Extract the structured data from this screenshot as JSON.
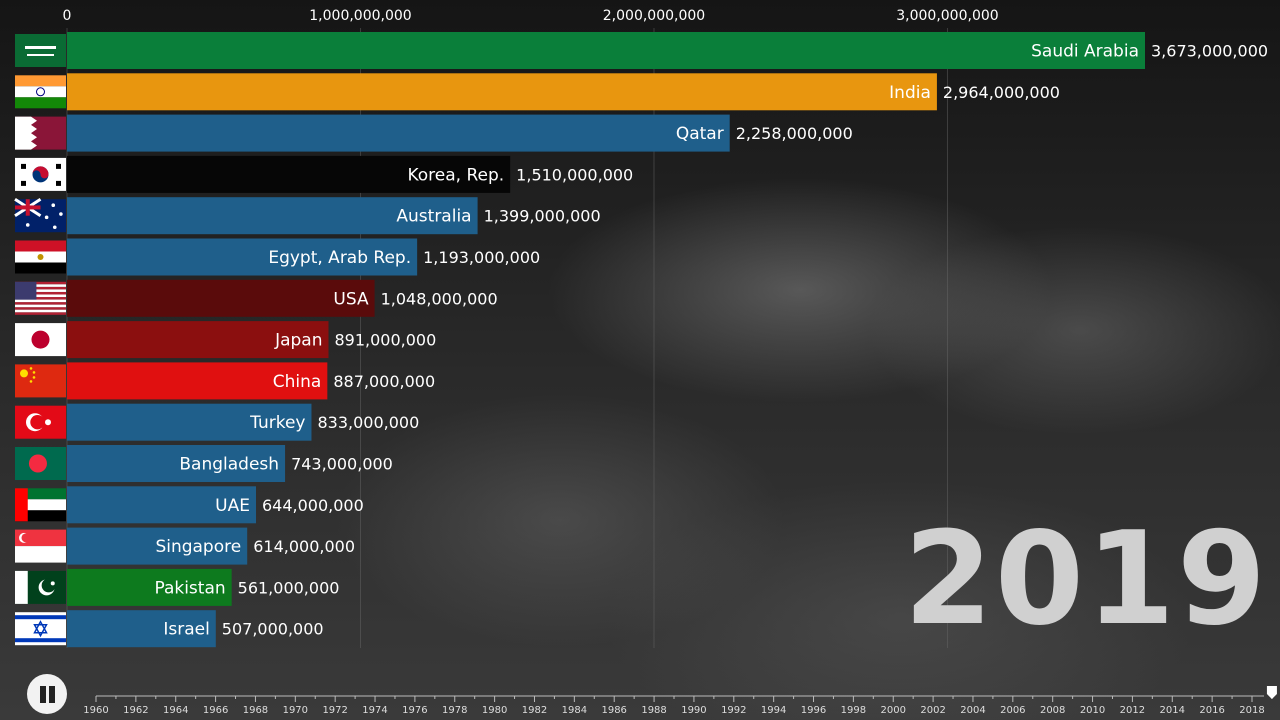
{
  "chart_data": {
    "type": "bar",
    "orientation": "horizontal",
    "title": "",
    "xlabel": "",
    "ylabel": "",
    "xlim": [
      0,
      3673000000
    ],
    "grid": true,
    "x_ticks": [
      0,
      1000000000,
      2000000000,
      3000000000
    ],
    "x_tick_labels": [
      "0",
      "1,000,000,000",
      "2,000,000,000",
      "3,000,000,000"
    ],
    "categories": [
      "Saudi Arabia",
      "India",
      "Qatar",
      "Korea, Rep.",
      "Australia",
      "Egypt, Arab Rep.",
      "USA",
      "Japan",
      "China",
      "Turkey",
      "Bangladesh",
      "UAE",
      "Singapore",
      "Pakistan",
      "Israel"
    ],
    "values": [
      3673000000,
      2964000000,
      2258000000,
      1510000000,
      1399000000,
      1193000000,
      1048000000,
      891000000,
      887000000,
      833000000,
      743000000,
      644000000,
      614000000,
      561000000,
      507000000
    ],
    "value_labels": [
      "3,673,000,000",
      "2,964,000,000",
      "2,258,000,000",
      "1,510,000,000",
      "1,399,000,000",
      "1,193,000,000",
      "1,048,000,000",
      "891,000,000",
      "887,000,000",
      "833,000,000",
      "743,000,000",
      "644,000,000",
      "614,000,000",
      "561,000,000",
      "507,000,000"
    ],
    "colors": [
      "#0a7f3a",
      "#e8960f",
      "#1f5f8b",
      "#060606",
      "#1f5f8b",
      "#1f5f8b",
      "#5a0b0b",
      "#8b0f0f",
      "#e01010",
      "#1f5f8b",
      "#1f5f8b",
      "#1f5f8b",
      "#1f5f8b",
      "#0d7a1e",
      "#1f5f8b"
    ],
    "flags": [
      "saudi-arabia-flag",
      "india-flag",
      "qatar-flag",
      "korea-flag",
      "australia-flag",
      "egypt-flag",
      "usa-flag",
      "japan-flag",
      "china-flag",
      "turkey-flag",
      "bangladesh-flag",
      "uae-flag",
      "singapore-flag",
      "pakistan-flag",
      "israel-flag"
    ]
  },
  "year": "2019",
  "timeline": {
    "labels": [
      "1960",
      "1962",
      "1964",
      "1966",
      "1968",
      "1970",
      "1972",
      "1974",
      "1976",
      "1978",
      "1980",
      "1982",
      "1984",
      "1986",
      "1988",
      "1990",
      "1992",
      "1994",
      "1996",
      "1998",
      "2000",
      "2002",
      "2004",
      "2006",
      "2008",
      "2010",
      "2012",
      "2014",
      "2016",
      "2018"
    ],
    "start": 1960,
    "end": 2019,
    "current": 2019
  }
}
